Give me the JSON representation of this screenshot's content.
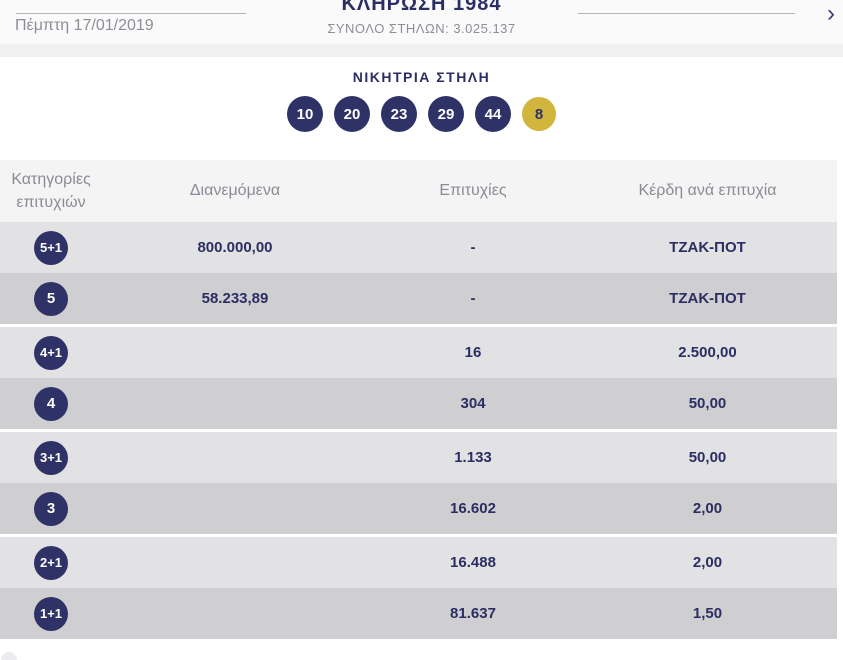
{
  "colors": {
    "navy": "#2f3266",
    "gold": "#d2b53d",
    "row_light": "#e2e1e3",
    "row_dark": "#cfced1",
    "muted_text": "#8b8b94"
  },
  "header": {
    "prev_icon": "‹",
    "next_icon": "›",
    "date": "Πέμπτη 17/01/2019",
    "title": "ΚΛΗΡΩΣΗ 1984",
    "total_label": "ΣΥΝΟΛΟ ΣΤΗΛΩΝ: 3.025.137"
  },
  "winning": {
    "label": "ΝΙΚΗΤΡΙΑ ΣΤΗΛΗ",
    "numbers": [
      "10",
      "20",
      "23",
      "29",
      "44"
    ],
    "bonus": "8"
  },
  "table": {
    "headers": [
      "Κατηγορίες επιτυχιών",
      "Διανεμόμενα",
      "Επιτυχίες",
      "Κέρδη ανά επιτυχία"
    ],
    "rows": [
      {
        "category": "5+1",
        "distributed": "800.000,00",
        "wins": "-",
        "prize": "ΤΖΑΚ-ΠΟΤ"
      },
      {
        "category": "5",
        "distributed": "58.233,89",
        "wins": "-",
        "prize": "ΤΖΑΚ-ΠΟΤ"
      },
      {
        "category": "4+1",
        "distributed": "",
        "wins": "16",
        "prize": "2.500,00"
      },
      {
        "category": "4",
        "distributed": "",
        "wins": "304",
        "prize": "50,00"
      },
      {
        "category": "3+1",
        "distributed": "",
        "wins": "1.133",
        "prize": "50,00"
      },
      {
        "category": "3",
        "distributed": "",
        "wins": "16.602",
        "prize": "2,00"
      },
      {
        "category": "2+1",
        "distributed": "",
        "wins": "16.488",
        "prize": "2,00"
      },
      {
        "category": "1+1",
        "distributed": "",
        "wins": "81.637",
        "prize": "1,50"
      }
    ]
  }
}
